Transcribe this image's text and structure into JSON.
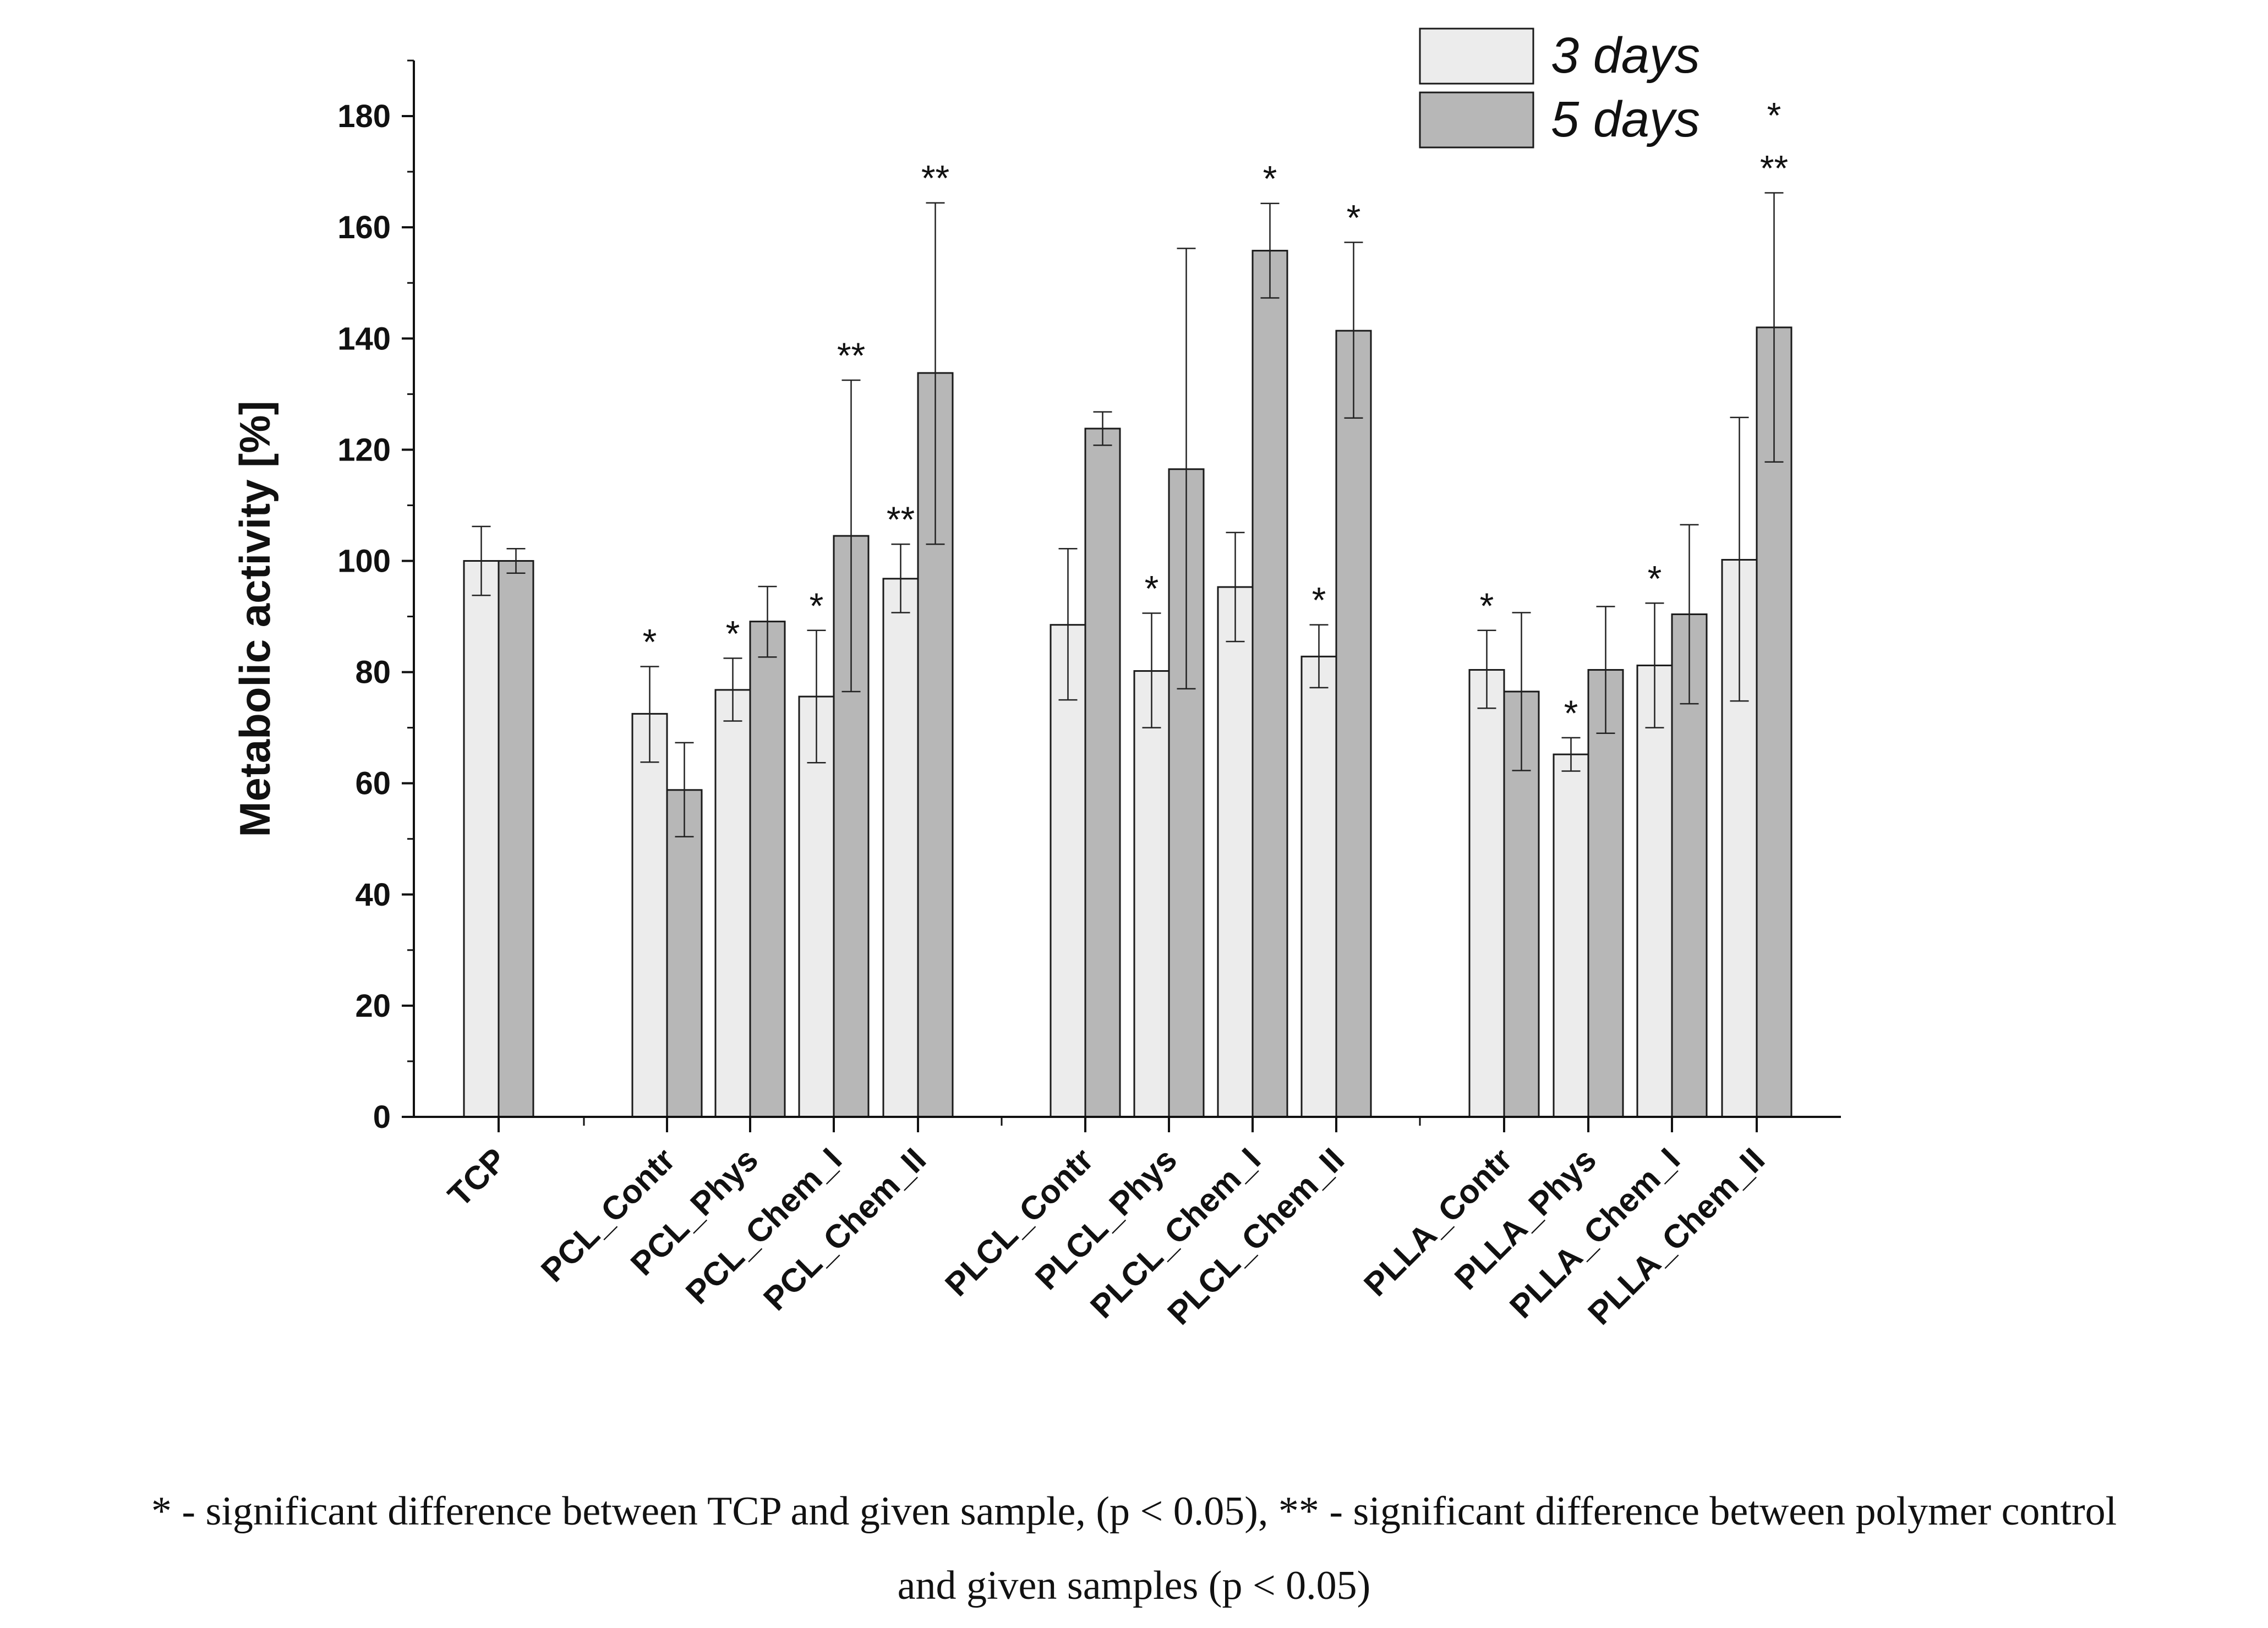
{
  "chart_data": {
    "type": "bar",
    "ylabel": "Metabolic activity [%]",
    "xlabel": "",
    "ylim": [
      0,
      190
    ],
    "yticks": [
      0,
      20,
      40,
      60,
      80,
      100,
      120,
      140,
      160,
      180
    ],
    "y_minor_ticks": true,
    "grid": false,
    "legend_position": "top-right",
    "categories": [
      "TCP",
      "PCL_Contr",
      "PCL_Phys",
      "PCL_Chem_I",
      "PCL_Chem_II",
      "PLCL_Contr",
      "PLCL_Phys",
      "PLCL_Chem_I",
      "PLCL_Chem_II",
      "PLLA_Contr",
      "PLLA_Phys",
      "PLLA_Chem_I",
      "PLLA_Chem_II"
    ],
    "groups": [
      {
        "categories": [
          "TCP"
        ]
      },
      {
        "categories": [
          "PCL_Contr",
          "PCL_Phys",
          "PCL_Chem_I",
          "PCL_Chem_II"
        ]
      },
      {
        "categories": [
          "PLCL_Contr",
          "PLCL_Phys",
          "PLCL_Chem_I",
          "PLCL_Chem_II"
        ]
      },
      {
        "categories": [
          "PLLA_Contr",
          "PLLA_Phys",
          "PLLA_Chem_I",
          "PLLA_Chem_II"
        ]
      }
    ],
    "series": [
      {
        "name": "3 days",
        "color": "#ececec",
        "values": [
          100,
          72.5,
          76.8,
          75.6,
          96.8,
          88.5,
          80.2,
          95.3,
          82.8,
          80.4,
          65.2,
          81.2,
          100.2
        ],
        "err_low": [
          93.8,
          63.8,
          71.2,
          63.7,
          90.7,
          75.0,
          70.0,
          85.5,
          77.2,
          73.5,
          62.2,
          70.0,
          74.8
        ],
        "err_high": [
          106.2,
          81.0,
          82.5,
          87.5,
          103.0,
          102.2,
          90.6,
          105.1,
          88.5,
          87.5,
          68.2,
          92.4,
          125.8
        ],
        "annotations": [
          "",
          "*",
          "*",
          "*",
          "**",
          "",
          "*",
          "",
          "*",
          "*",
          "*",
          "*",
          ""
        ]
      },
      {
        "name": "5 days",
        "color": "#b7b7b7",
        "values": [
          100,
          58.8,
          89.1,
          104.5,
          133.8,
          123.8,
          116.5,
          155.8,
          141.4,
          76.5,
          80.4,
          90.4,
          142.0
        ],
        "err_low": [
          97.8,
          50.4,
          82.7,
          76.5,
          103.0,
          120.8,
          77.0,
          147.3,
          125.7,
          62.3,
          69.0,
          74.3,
          117.8
        ],
        "err_high": [
          102.2,
          67.3,
          95.4,
          132.5,
          164.4,
          126.8,
          156.2,
          164.3,
          157.3,
          90.7,
          91.8,
          106.5,
          166.2
        ],
        "annotations": [
          "",
          "",
          "",
          "**",
          "**",
          "",
          "",
          "*",
          "*",
          "",
          "",
          "",
          "*\n**"
        ]
      }
    ]
  },
  "footnote": {
    "line1": "* - significant difference between TCP and given sample, (p < 0.05), ** - significant difference between polymer control",
    "line2": "and given samples (p < 0.05)"
  }
}
